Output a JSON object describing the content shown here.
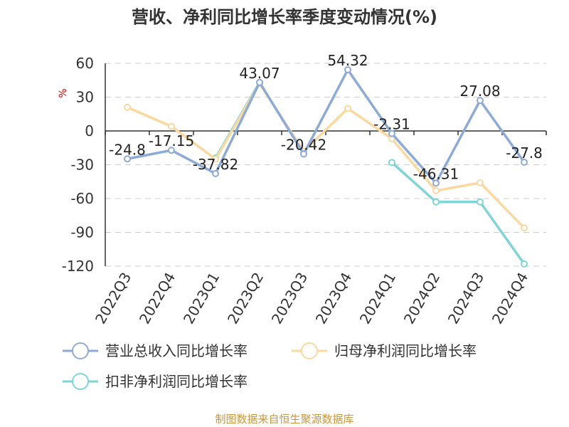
{
  "chart_data": {
    "type": "line",
    "title": "营收、净利同比增长率季度变动情况(%)",
    "ylabel": "%",
    "ylim": [
      -120,
      60
    ],
    "yticks": [
      60,
      30,
      0,
      -30,
      -60,
      -90,
      -120
    ],
    "grid": true,
    "legend_position": "bottom",
    "categories": [
      "2022Q3",
      "2022Q4",
      "2023Q1",
      "2023Q2",
      "2023Q3",
      "2023Q4",
      "2024Q1",
      "2024Q2",
      "2024Q3",
      "2024Q4"
    ],
    "series": [
      {
        "name": "营业总收入同比增长率",
        "color": "#8eaad6",
        "values": [
          -24.8,
          -17.15,
          -37.82,
          43.07,
          -20.42,
          54.32,
          -2.31,
          -46.31,
          27.08,
          -27.8
        ],
        "labels": [
          "-24.8",
          "-17.15",
          "-37.82",
          "43.07",
          "-20.42",
          "54.32",
          "-2.31",
          "-46.31",
          "27.08",
          "-27.8"
        ]
      },
      {
        "name": "归母净利润同比增长率",
        "color": "#fad9a0",
        "values": [
          21,
          4,
          -25,
          42,
          -18,
          20,
          -7,
          -53,
          -46,
          -86
        ]
      },
      {
        "name": "扣非净利润同比增长率",
        "color": "#7fd4d4",
        "values": [
          null,
          null,
          -24,
          43,
          null,
          null,
          -28,
          -63,
          -63,
          -118
        ]
      }
    ]
  },
  "source": "制图数据来自恒生聚源数据库"
}
